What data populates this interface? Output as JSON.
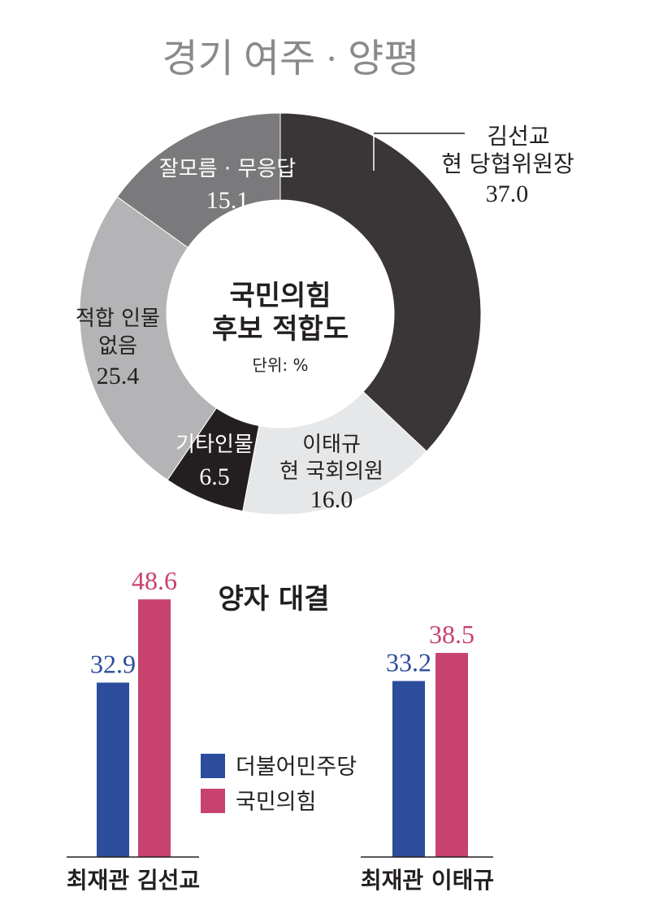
{
  "colors": {
    "slice_kim": "#3a3536",
    "slice_lee": "#e6e7e8",
    "slice_other": "#231f20",
    "slice_none": "#b4b4b6",
    "slice_unsure": "#7a7a7c",
    "party_dem": "#2b4d9b",
    "party_ppp": "#c8426f",
    "title_gray": "#8a8a8a"
  },
  "chart_data": [
    {
      "type": "pie",
      "title": "경기 여주 · 양평",
      "center_label": [
        "국민의힘",
        "후보 적합도"
      ],
      "unit_label": "단위: %",
      "slices": [
        {
          "key": "kim",
          "label": [
            "김선교",
            "현 당협위원장"
          ],
          "value": 37.0,
          "value_label": "37.0"
        },
        {
          "key": "lee",
          "label": [
            "이태규",
            "현 국회의원"
          ],
          "value": 16.0,
          "value_label": "16.0"
        },
        {
          "key": "other",
          "label": [
            "기타인물"
          ],
          "value": 6.5,
          "value_label": "6.5"
        },
        {
          "key": "none",
          "label": [
            "적합 인물",
            "없음"
          ],
          "value": 25.4,
          "value_label": "25.4"
        },
        {
          "key": "unsure",
          "label": [
            "잘모름 · 무응답"
          ],
          "value": 15.1,
          "value_label": "15.1"
        }
      ]
    },
    {
      "type": "bar",
      "title": "양자 대결",
      "categories": [
        "최재관 김선교",
        "최재관 이태규"
      ],
      "series": [
        {
          "name": "더불어민주당",
          "values": [
            32.9,
            33.2
          ]
        },
        {
          "name": "국민의힘",
          "values": [
            48.6,
            38.5
          ]
        }
      ],
      "value_labels": [
        [
          "32.9",
          "33.2"
        ],
        [
          "48.6",
          "38.5"
        ]
      ],
      "legend": "center"
    }
  ]
}
